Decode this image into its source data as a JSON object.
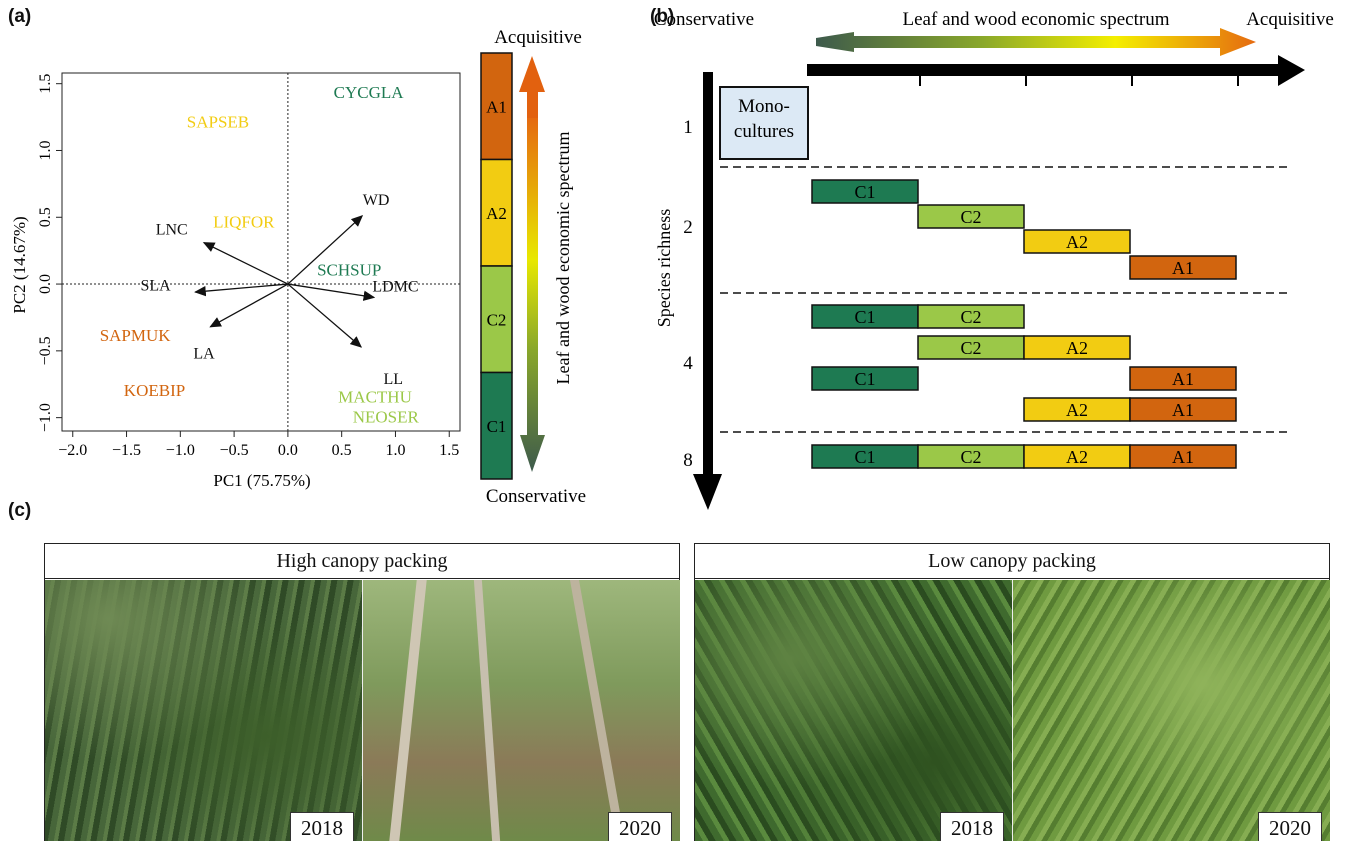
{
  "panels": {
    "a": "(a)",
    "b": "(b)",
    "c": "(c)"
  },
  "colors": {
    "A1": "#d2650f",
    "A2": "#f2cc12",
    "C2": "#9bc848",
    "C1": "#1e7a52"
  },
  "chart_data": [
    {
      "type": "scatter",
      "title": "",
      "xlabel": "PC1 (75.75%)",
      "ylabel": "PC2 (14.67%)",
      "xlim": [
        -2.1,
        1.6
      ],
      "ylim": [
        -1.1,
        1.58
      ],
      "xticks": [
        -2.0,
        -1.5,
        -1.0,
        -0.5,
        0.0,
        0.5,
        1.0,
        1.5
      ],
      "xtick_labels": [
        "−2.0",
        "−1.5",
        "−1.0",
        "−0.5",
        "0.0",
        "0.5",
        "1.0",
        "1.5"
      ],
      "yticks": [
        -1.0,
        -0.5,
        0.0,
        0.5,
        1.0,
        1.5
      ],
      "ytick_labels": [
        "−1.0",
        "−0.5",
        "0.0",
        "0.5",
        "1.0",
        "1.5"
      ],
      "grid": false,
      "species": [
        {
          "name": "CYCGLA",
          "x": 0.75,
          "y": 1.43,
          "group": "C1"
        },
        {
          "name": "SAPSEB",
          "x": -0.65,
          "y": 1.21,
          "group": "A2"
        },
        {
          "name": "LIQFOR",
          "x": -0.41,
          "y": 0.46,
          "group": "A2"
        },
        {
          "name": "SCHSUP",
          "x": 0.57,
          "y": 0.1,
          "group": "C1"
        },
        {
          "name": "SAPMUK",
          "x": -1.42,
          "y": -0.39,
          "group": "A1"
        },
        {
          "name": "KOEBIP",
          "x": -1.24,
          "y": -0.8,
          "group": "A1"
        },
        {
          "name": "MACTHU",
          "x": 0.81,
          "y": -0.85,
          "group": "C2"
        },
        {
          "name": "NEOSER",
          "x": 0.91,
          "y": -1.0,
          "group": "C2"
        }
      ],
      "loadings": [
        {
          "name": "WD",
          "x": 0.69,
          "y": 0.51
        },
        {
          "name": "LNC",
          "x": -0.78,
          "y": 0.31
        },
        {
          "name": "SLA",
          "x": -0.86,
          "y": -0.06
        },
        {
          "name": "LDMC",
          "x": 0.8,
          "y": -0.1
        },
        {
          "name": "LA",
          "x": -0.72,
          "y": -0.32
        },
        {
          "name": "LL",
          "x": 0.68,
          "y": -0.47
        }
      ],
      "loading_label_offsets": {
        "WD": [
          0.13,
          0.12
        ],
        "LNC": [
          -0.3,
          0.1
        ],
        "SLA": [
          -0.37,
          0.05
        ],
        "LDMC": [
          0.2,
          0.08
        ],
        "LA": [
          -0.06,
          -0.2
        ],
        "LL": [
          0.3,
          -0.24
        ]
      }
    },
    {
      "type": "table",
      "title": "",
      "groups_top_to_bottom": [
        "A1",
        "A2",
        "C2",
        "C1"
      ],
      "top_label": "Acquisitive",
      "bottom_label": "Conservative",
      "arrow_label": "Leaf and wood economic spectrum"
    },
    {
      "type": "table",
      "title": "",
      "left_label": "Conservative",
      "right_label": "Acquisitive",
      "spectrum_label": "Leaf and wood economic spectrum",
      "ylabel": "Species richness",
      "richness_levels": [
        "1",
        "2",
        "4",
        "8"
      ],
      "monoculture_label": [
        "Mono-",
        "cultures"
      ],
      "column_order": [
        "C1",
        "C2",
        "A2",
        "A1"
      ],
      "mixtures": [
        {
          "richness": "2",
          "groups": [
            "C1"
          ],
          "start": 0
        },
        {
          "richness": "2",
          "groups": [
            "C2"
          ],
          "start": 1
        },
        {
          "richness": "2",
          "groups": [
            "A2"
          ],
          "start": 2
        },
        {
          "richness": "2",
          "groups": [
            "A1"
          ],
          "start": 3
        },
        {
          "richness": "4",
          "groups": [
            "C1",
            "C2"
          ],
          "start": 0
        },
        {
          "richness": "4",
          "groups": [
            "C2",
            "A2"
          ],
          "start": 1
        },
        {
          "richness": "4",
          "groups": [
            "C1",
            "A1"
          ],
          "start": 0,
          "split": true
        },
        {
          "richness": "4",
          "groups": [
            "A2",
            "A1"
          ],
          "start": 2
        },
        {
          "richness": "8",
          "groups": [
            "C1",
            "C2",
            "A2",
            "A1"
          ],
          "start": 0
        }
      ]
    }
  ],
  "photos": {
    "high": {
      "title": "High canopy packing",
      "years": [
        "2018",
        "2020"
      ]
    },
    "low": {
      "title": "Low canopy packing",
      "years": [
        "2018",
        "2020"
      ]
    }
  }
}
